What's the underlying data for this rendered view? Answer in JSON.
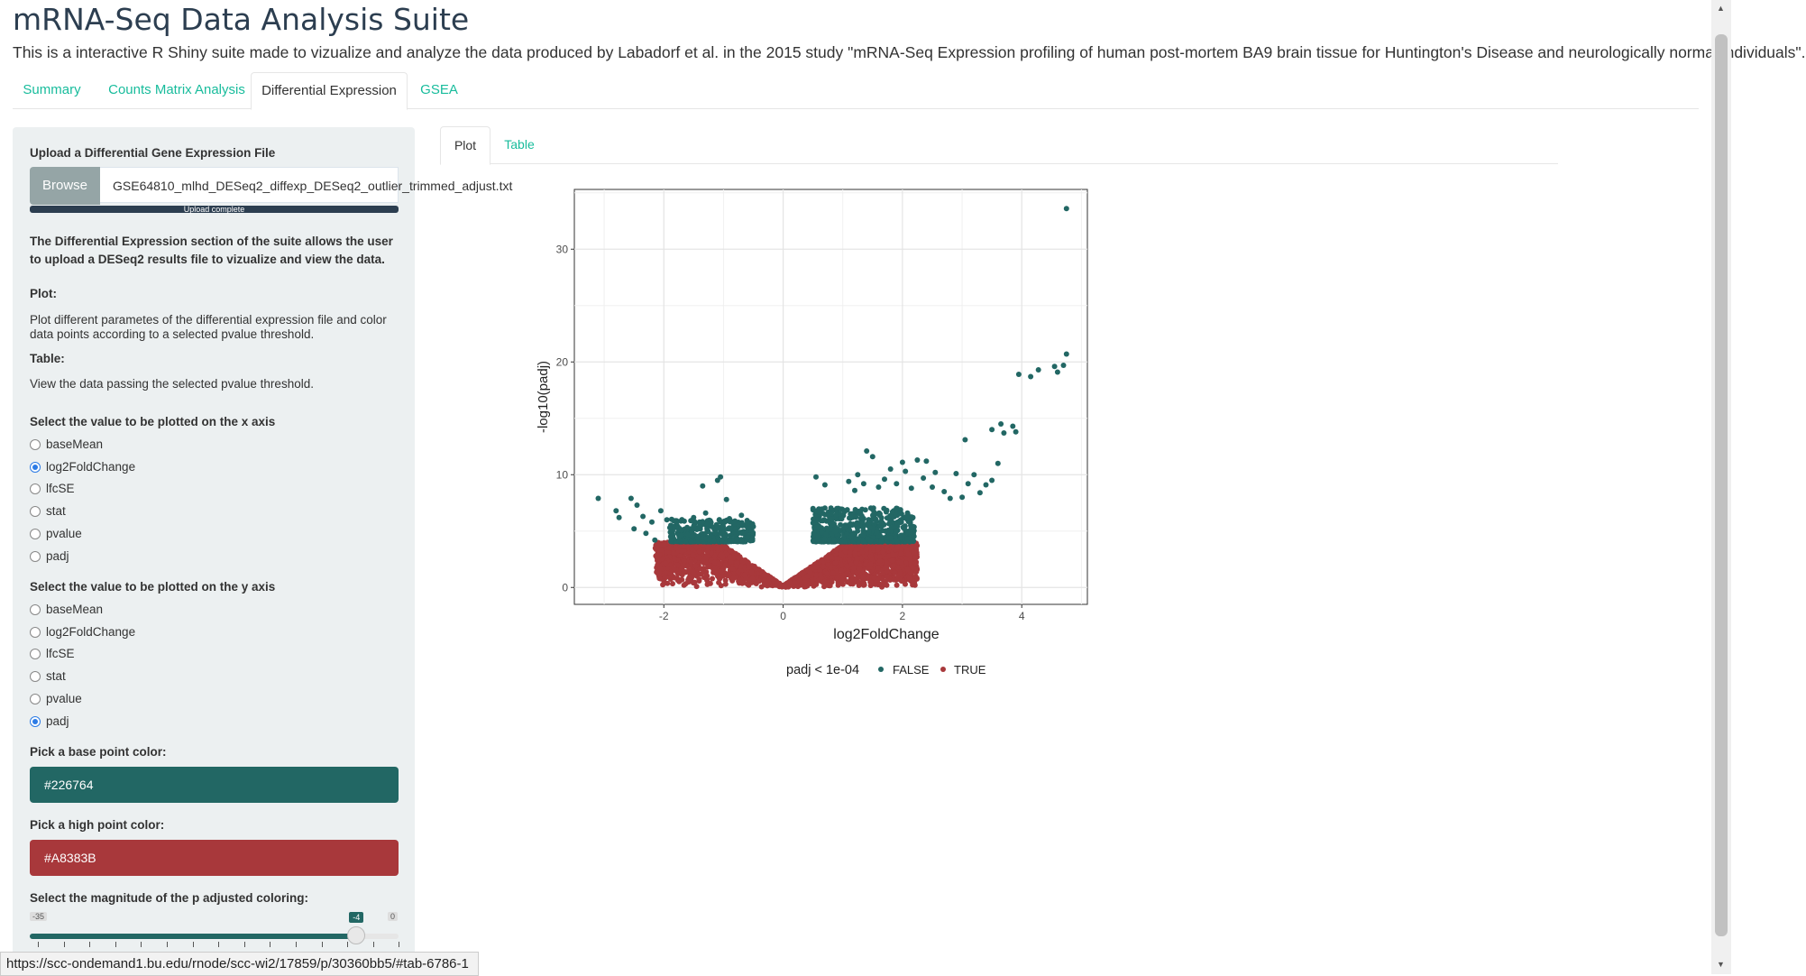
{
  "app": {
    "title": "mRNA-Seq Data Analysis Suite",
    "subtitle": "This is a interactive R Shiny suite made to vizualize and analyze the data produced by Labadorf et al. in the 2015 study \"mRNA-Seq Expression profiling of human post-mortem BA9 brain tissue for Huntington's Disease and neurologically normal individuals\"."
  },
  "tabs": [
    {
      "label": "Summary",
      "active": false
    },
    {
      "label": "Counts Matrix Analysis",
      "active": false
    },
    {
      "label": "Differential Expression",
      "active": true
    },
    {
      "label": "GSEA",
      "active": false
    }
  ],
  "sidebar": {
    "upload_label": "Upload a Differential Gene Expression File",
    "browse_label": "Browse",
    "file_name": "GSE64810_mlhd_DESeq2_diffexp_DESeq2_outlier_trimmed_adjust.txt",
    "progress_text": "Upload complete",
    "progress_pct": 100,
    "description": "The Differential Expression section of the suite allows the user to upload a DESeq2 results file to vizualize and view the data.",
    "plot_heading": "Plot:",
    "plot_text": "Plot different parametes of the differential expression file and color data points according to a selected pvalue threshold.",
    "table_heading": "Table:",
    "table_text": "View the data passing the selected pvalue threshold.",
    "x_label": "Select the value to be plotted on the x axis",
    "x_options": [
      "baseMean",
      "log2FoldChange",
      "lfcSE",
      "stat",
      "pvalue",
      "padj"
    ],
    "x_selected": "log2FoldChange",
    "y_label": "Select the value to be plotted on the y axis",
    "y_options": [
      "baseMean",
      "log2FoldChange",
      "lfcSE",
      "stat",
      "pvalue",
      "padj"
    ],
    "y_selected": "padj",
    "base_color_label": "Pick a base point color:",
    "base_color": "#226764",
    "high_color_label": "Pick a high point color:",
    "high_color": "#A8383B",
    "slider_label": "Select the magnitude of the p adjusted coloring:",
    "slider_min": "-35",
    "slider_max": "0",
    "slider_value": "-4"
  },
  "subtabs": [
    {
      "label": "Plot",
      "active": true
    },
    {
      "label": "Table",
      "active": false
    }
  ],
  "status_url": "https://scc-ondemand1.bu.edu/rnode/scc-wi2/17859/p/30360bb5/#tab-6786-1",
  "chart_data": {
    "type": "scatter",
    "xlabel": "log2FoldChange",
    "ylabel": "-log10(padj)",
    "xlim": [
      -3.5,
      5.1
    ],
    "ylim": [
      -1.5,
      35.3
    ],
    "x_ticks": [
      "-2",
      "0",
      "2",
      "4"
    ],
    "y_ticks": [
      "0",
      "10",
      "20",
      "30"
    ],
    "grid": true,
    "legend": {
      "title": "padj < 1e-04",
      "position": "bottom",
      "entries": [
        "FALSE",
        "TRUE"
      ]
    },
    "series": [
      {
        "name": "FALSE",
        "color": "#226764",
        "points": [
          [
            -3.1,
            7.9
          ],
          [
            -2.8,
            6.8
          ],
          [
            -2.75,
            6.2
          ],
          [
            -2.55,
            7.9
          ],
          [
            -2.5,
            5.2
          ],
          [
            -2.45,
            7.3
          ],
          [
            -2.35,
            6.3
          ],
          [
            -2.3,
            4.8
          ],
          [
            -2.2,
            5.8
          ],
          [
            -2.15,
            4.2
          ],
          [
            -2.05,
            6.8
          ],
          [
            -1.95,
            6.0
          ],
          [
            -1.9,
            5.3
          ],
          [
            -1.85,
            4.6
          ],
          [
            -1.8,
            5.9
          ],
          [
            -1.7,
            5.1
          ],
          [
            -1.6,
            4.7
          ],
          [
            -1.5,
            6.2
          ],
          [
            -1.4,
            5.8
          ],
          [
            -1.35,
            9.0
          ],
          [
            -1.3,
            6.6
          ],
          [
            -1.2,
            5.4
          ],
          [
            -1.1,
            9.5
          ],
          [
            -1.05,
            9.8
          ],
          [
            -0.95,
            7.8
          ],
          [
            -0.9,
            6.1
          ],
          [
            -0.8,
            5.2
          ],
          [
            -0.7,
            6.4
          ],
          [
            -0.6,
            5.7
          ],
          [
            -0.5,
            5.4
          ],
          [
            0.55,
            9.8
          ],
          [
            0.7,
            9.1
          ],
          [
            0.9,
            7.0
          ],
          [
            1.1,
            9.4
          ],
          [
            1.2,
            8.6
          ],
          [
            1.25,
            10.0
          ],
          [
            1.35,
            9.2
          ],
          [
            1.4,
            12.1
          ],
          [
            1.5,
            11.6
          ],
          [
            1.6,
            8.9
          ],
          [
            1.7,
            9.6
          ],
          [
            1.8,
            10.5
          ],
          [
            1.9,
            9.2
          ],
          [
            2.0,
            11.1
          ],
          [
            2.05,
            10.3
          ],
          [
            2.15,
            8.8
          ],
          [
            2.25,
            11.3
          ],
          [
            2.35,
            9.7
          ],
          [
            2.4,
            11.2
          ],
          [
            2.5,
            8.9
          ],
          [
            2.55,
            10.2
          ],
          [
            2.7,
            8.5
          ],
          [
            2.8,
            7.9
          ],
          [
            2.9,
            10.1
          ],
          [
            3.0,
            8.0
          ],
          [
            3.05,
            13.1
          ],
          [
            3.1,
            9.2
          ],
          [
            3.2,
            10.0
          ],
          [
            3.3,
            8.4
          ],
          [
            3.4,
            9.1
          ],
          [
            3.5,
            9.5
          ],
          [
            3.5,
            14.0
          ],
          [
            3.6,
            11.0
          ],
          [
            3.65,
            14.5
          ],
          [
            3.7,
            13.7
          ],
          [
            3.85,
            14.3
          ],
          [
            3.9,
            13.8
          ],
          [
            3.95,
            18.9
          ],
          [
            4.15,
            18.7
          ],
          [
            4.28,
            19.3
          ],
          [
            4.55,
            19.6
          ],
          [
            4.6,
            19.1
          ],
          [
            4.7,
            19.7
          ],
          [
            4.75,
            20.7
          ],
          [
            4.75,
            33.6
          ]
        ]
      },
      {
        "name": "TRUE",
        "color": "#A8383B",
        "points": "volcano base region |log2FC| < 2.2, -log10(padj) < 4"
      }
    ]
  }
}
